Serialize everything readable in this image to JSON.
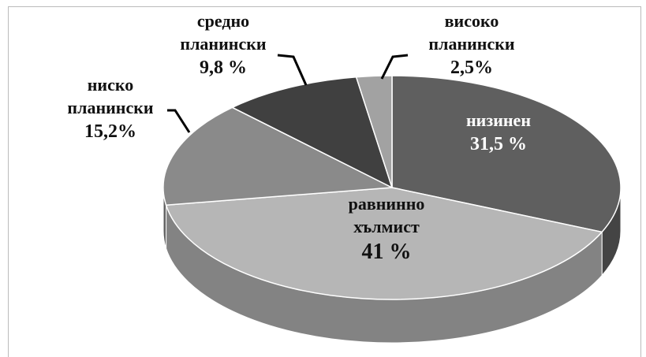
{
  "chart_data": {
    "type": "pie",
    "categories": [
      "низинен",
      "равнинно хълмист",
      "ниско планински",
      "средно планински",
      "високо планински"
    ],
    "values": [
      31.5,
      41,
      15.2,
      9.8,
      2.5
    ],
    "value_labels": [
      "31,5 %",
      "41 %",
      "15,2%",
      "9,8 %",
      "2,5%"
    ],
    "colors": [
      "#5f5f5f",
      "#b6b6b6",
      "#8a8a8a",
      "#404040",
      "#a2a2a2"
    ]
  }
}
